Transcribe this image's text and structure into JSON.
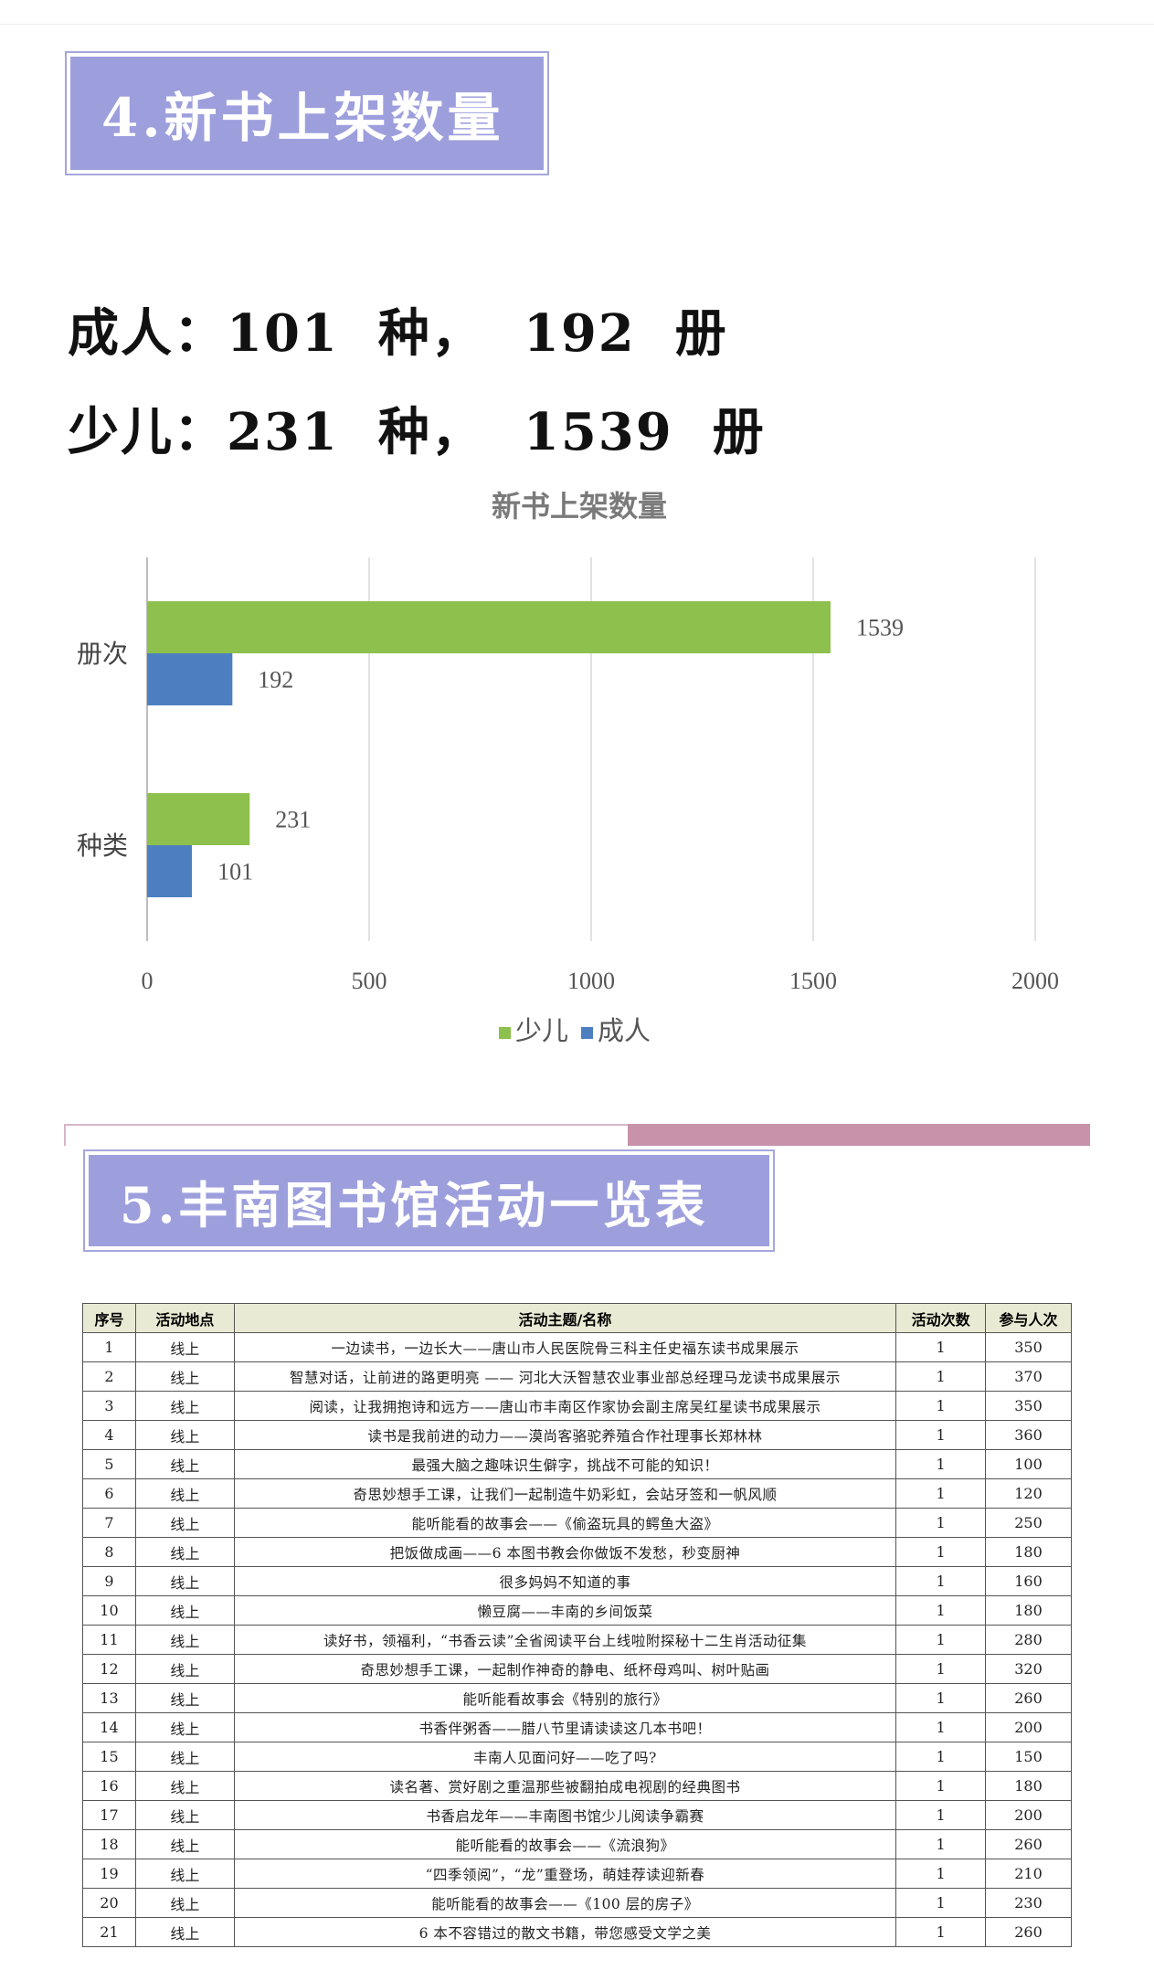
{
  "section4": {
    "heading": "4.新书上架数量",
    "adult_line": "成人：101  种，  192  册",
    "child_line": "少儿：231  种，  1539  册"
  },
  "chart_data": {
    "type": "bar",
    "orientation": "horizontal",
    "title": "新书上架数量",
    "categories": [
      "册次",
      "种类"
    ],
    "series": [
      {
        "name": "少儿",
        "values": [
          1539,
          231
        ],
        "color": "#8dc04c"
      },
      {
        "name": "成人",
        "values": [
          192,
          101
        ],
        "color": "#4d7fc0"
      }
    ],
    "xlim": [
      0,
      2000
    ],
    "xticks": [
      "0",
      "500",
      "1000",
      "1500",
      "2000"
    ],
    "grid": true,
    "legend_position": "bottom"
  },
  "section5": {
    "heading": "5.丰南图书馆活动一览表",
    "table": {
      "headers": [
        "序号",
        "活动地点",
        "活动主题/名称",
        "活动次数",
        "参与人次"
      ],
      "rows": [
        [
          "1",
          "线上",
          "一边读书，一边长大——唐山市人民医院骨三科主任史福东读书成果展示",
          "1",
          "350"
        ],
        [
          "2",
          "线上",
          "智慧对话，让前进的路更明亮 —— 河北大沃智慧农业事业部总经理马龙读书成果展示",
          "1",
          "370"
        ],
        [
          "3",
          "线上",
          "阅读，让我拥抱诗和远方——唐山市丰南区作家协会副主席吴红星读书成果展示",
          "1",
          "350"
        ],
        [
          "4",
          "线上",
          "读书是我前进的动力——漠尚客骆驼养殖合作社理事长郑林林",
          "1",
          "360"
        ],
        [
          "5",
          "线上",
          "最强大脑之趣味识生僻字，挑战不可能的知识！",
          "1",
          "100"
        ],
        [
          "6",
          "线上",
          "奇思妙想手工课，让我们一起制造牛奶彩虹，会站牙签和一帆风顺",
          "1",
          "120"
        ],
        [
          "7",
          "线上",
          "能听能看的故事会——《偷盗玩具的鳄鱼大盗》",
          "1",
          "250"
        ],
        [
          "8",
          "线上",
          "把饭做成画——6 本图书教会你做饭不发愁，秒变厨神",
          "1",
          "180"
        ],
        [
          "9",
          "线上",
          "很多妈妈不知道的事",
          "1",
          "160"
        ],
        [
          "10",
          "线上",
          "懒豆腐——丰南的乡间饭菜",
          "1",
          "180"
        ],
        [
          "11",
          "线上",
          "读好书，领福利，“书香云读”全省阅读平台上线啦附探秘十二生肖活动征集",
          "1",
          "280"
        ],
        [
          "12",
          "线上",
          "奇思妙想手工课，一起制作神奇的静电、纸杯母鸡叫、树叶贴画",
          "1",
          "320"
        ],
        [
          "13",
          "线上",
          "能听能看故事会《特别的旅行》",
          "1",
          "260"
        ],
        [
          "14",
          "线上",
          "书香伴粥香——腊八节里请读读这几本书吧！",
          "1",
          "200"
        ],
        [
          "15",
          "线上",
          "丰南人见面问好——吃了吗?",
          "1",
          "150"
        ],
        [
          "16",
          "线上",
          "读名著、赏好剧之重温那些被翻拍成电视剧的经典图书",
          "1",
          "180"
        ],
        [
          "17",
          "线上",
          "书香启龙年——丰南图书馆少儿阅读争霸赛",
          "1",
          "200"
        ],
        [
          "18",
          "线上",
          "能听能看的故事会——《流浪狗》",
          "1",
          "260"
        ],
        [
          "19",
          "线上",
          "“四季领阅”，“龙”重登场，萌娃荐读迎新春",
          "1",
          "210"
        ],
        [
          "20",
          "线上",
          "能听能看的故事会——《100 层的房子》",
          "1",
          "230"
        ],
        [
          "21",
          "线上",
          "6 本不容错过的散文书籍，带您感受文学之美",
          "1",
          "260"
        ]
      ]
    }
  }
}
